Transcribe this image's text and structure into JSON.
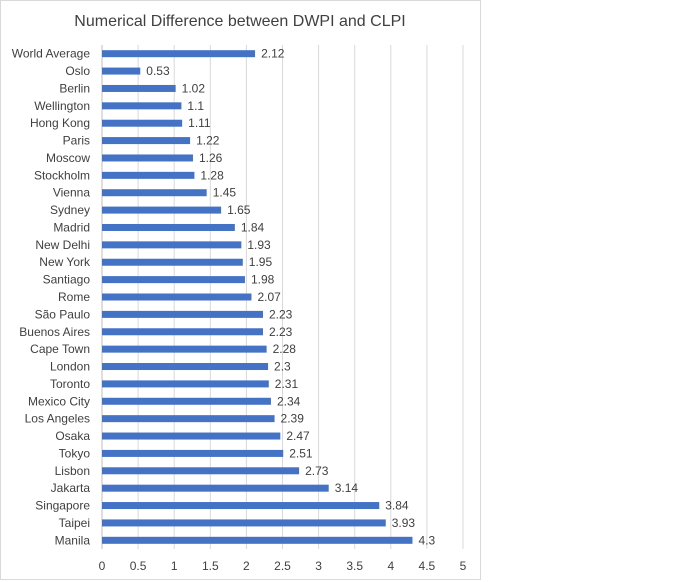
{
  "chart_data": {
    "type": "bar",
    "orientation": "horizontal",
    "title": "Numerical Difference between DWPI and CLPI",
    "xlabel": "",
    "ylabel": "",
    "xlim": [
      0,
      5
    ],
    "x_ticks": [
      0,
      0.5,
      1,
      1.5,
      2,
      2.5,
      3,
      3.5,
      4,
      4.5,
      5
    ],
    "x_tick_labels": [
      "0",
      "0.5",
      "1",
      "1.5",
      "2",
      "2.5",
      "3",
      "3.5",
      "4",
      "4.5",
      "5"
    ],
    "grid": "vertical",
    "legend": "none",
    "bar_color": "#4472C4",
    "categories": [
      "World Average",
      "Oslo",
      "Berlin",
      "Wellington",
      "Hong Kong",
      "Paris",
      "Moscow",
      "Stockholm",
      "Vienna",
      "Sydney",
      "Madrid",
      "New Delhi",
      "New York",
      "Santiago",
      "Rome",
      "São Paulo",
      "Buenos Aires",
      "Cape Town",
      "London",
      "Toronto",
      "Mexico City",
      "Los Angeles",
      "Osaka",
      "Tokyo",
      "Lisbon",
      "Jakarta",
      "Singapore",
      "Taipei",
      "Manila"
    ],
    "values": [
      2.12,
      0.53,
      1.02,
      1.1,
      1.11,
      1.22,
      1.26,
      1.28,
      1.45,
      1.65,
      1.84,
      1.93,
      1.95,
      1.98,
      2.07,
      2.23,
      2.23,
      2.28,
      2.3,
      2.31,
      2.34,
      2.39,
      2.47,
      2.51,
      2.73,
      3.14,
      3.84,
      3.93,
      4.3
    ]
  }
}
